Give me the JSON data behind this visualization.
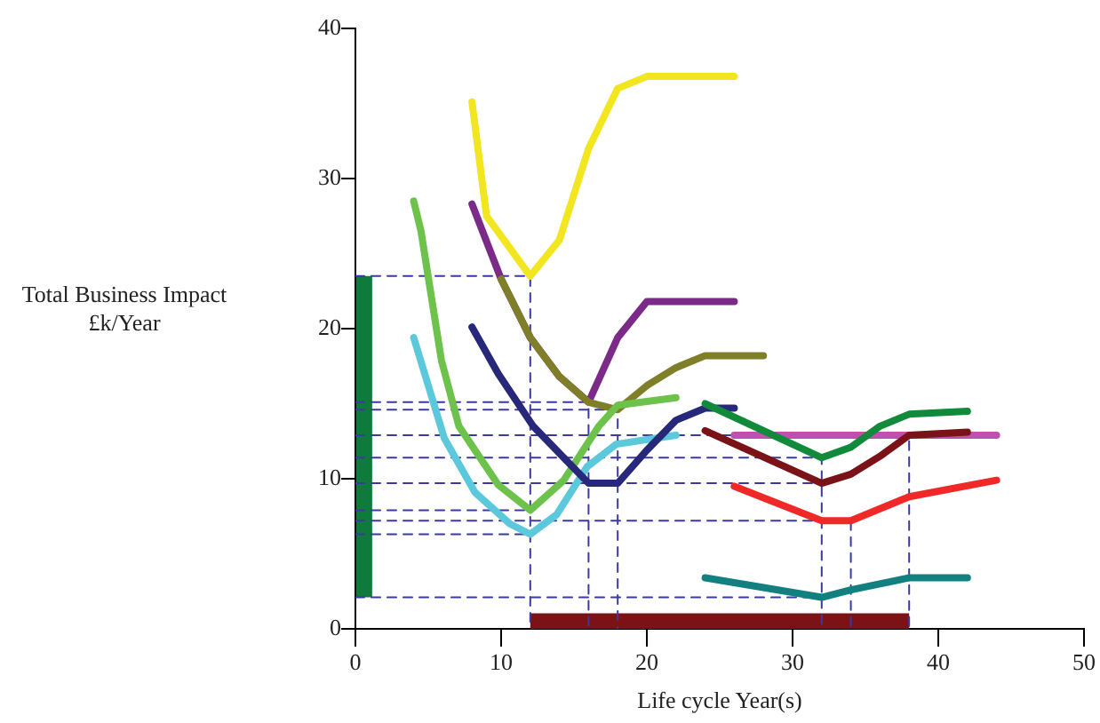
{
  "chart_data": {
    "type": "line",
    "xlabel": "Life cycle Year(s)",
    "ylabel": "Total Business Impact £k/Year",
    "xlim": [
      0,
      50
    ],
    "xticks": [
      0,
      10,
      20,
      30,
      40,
      50
    ],
    "ylim": [
      0,
      40
    ],
    "yticks": [
      0,
      10,
      20,
      30,
      40
    ],
    "grid": false,
    "legend": false,
    "marker": "none",
    "line_style": "solid",
    "series": [
      {
        "color": "#0e7a3c",
        "x": [
          0.6,
          0.6
        ],
        "values": [
          2.1,
          23.5
        ]
      },
      {
        "color": "#7a1216",
        "x": [
          12,
          38
        ],
        "values": [
          0.5,
          0.5
        ]
      },
      {
        "color": "#3a3aa0",
        "line_style": "dashed",
        "x": [
          0,
          12,
          12
        ],
        "values": [
          23.5,
          23.5,
          0
        ]
      },
      {
        "color": "#3a3aa0",
        "line_style": "dashed",
        "x": [
          0,
          16,
          16
        ],
        "values": [
          15.1,
          15.1,
          0
        ]
      },
      {
        "color": "#3a3aa0",
        "line_style": "dashed",
        "x": [
          0,
          18,
          18
        ],
        "values": [
          14.6,
          14.6,
          0
        ]
      },
      {
        "color": "#3a3aa0",
        "line_style": "dashed",
        "x": [
          0,
          38,
          38
        ],
        "values": [
          12.9,
          12.9,
          0
        ]
      },
      {
        "color": "#3a3aa0",
        "line_style": "dashed",
        "x": [
          0,
          32,
          32
        ],
        "values": [
          11.4,
          11.4,
          0
        ]
      },
      {
        "color": "#3a3aa0",
        "line_style": "dashed",
        "x": [
          0,
          32
        ],
        "values": [
          9.7,
          9.7
        ]
      },
      {
        "color": "#3a3aa0",
        "line_style": "dashed",
        "x": [
          0,
          12
        ],
        "values": [
          7.9,
          7.9
        ]
      },
      {
        "color": "#3a3aa0",
        "line_style": "dashed",
        "x": [
          0,
          34,
          34
        ],
        "values": [
          7.2,
          7.2,
          0
        ]
      },
      {
        "color": "#3a3aa0",
        "line_style": "dashed",
        "x": [
          0,
          12
        ],
        "values": [
          6.3,
          6.3
        ]
      },
      {
        "color": "#3a3aa0",
        "line_style": "dashed",
        "x": [
          0,
          32
        ],
        "values": [
          2.1,
          2.1
        ]
      },
      {
        "color": "#f2e620",
        "x": [
          8,
          9,
          12,
          14,
          16,
          18,
          20,
          26
        ],
        "values": [
          35.1,
          27.5,
          23.5,
          25.9,
          32,
          36,
          36.8,
          36.8
        ]
      },
      {
        "color": "#7b2a88",
        "x": [
          8,
          10,
          12,
          14,
          16,
          18,
          20,
          26
        ],
        "values": [
          28.3,
          23.3,
          19.4,
          16.8,
          15.1,
          19.4,
          21.8,
          21.8
        ]
      },
      {
        "color": "#7f7f2a",
        "x": [
          10,
          12,
          14,
          16,
          18,
          20,
          22,
          24,
          28
        ],
        "values": [
          23.3,
          19.4,
          16.8,
          15.1,
          14.6,
          16.2,
          17.4,
          18.2,
          18.2
        ]
      },
      {
        "color": "#6cc24a",
        "x": [
          4,
          4.5,
          5.9,
          7.1,
          9.8,
          12,
          14.3,
          16.7,
          18,
          22
        ],
        "values": [
          28.5,
          26.5,
          17.9,
          13.5,
          9.6,
          7.9,
          9.9,
          13.5,
          14.9,
          15.4
        ]
      },
      {
        "color": "#5cc8dc",
        "x": [
          4,
          6.1,
          8.2,
          10.6,
          12,
          13.8,
          15.9,
          17.9,
          22
        ],
        "values": [
          19.4,
          12.7,
          9.1,
          7,
          6.3,
          7.6,
          10.8,
          12.3,
          12.9
        ]
      },
      {
        "color": "#27287a",
        "x": [
          8,
          9.8,
          12.2,
          14.3,
          16,
          18,
          20,
          22,
          24,
          26
        ],
        "values": [
          20.1,
          17,
          13.5,
          11.4,
          9.7,
          9.7,
          11.9,
          13.9,
          14.7,
          14.7
        ]
      },
      {
        "color": "#c04fb0",
        "x": [
          26,
          44
        ],
        "values": [
          12.9,
          12.9
        ]
      },
      {
        "color": "#128a3c",
        "x": [
          24,
          32,
          34,
          36,
          38,
          42
        ],
        "values": [
          15,
          11.4,
          12.1,
          13.5,
          14.3,
          14.5
        ]
      },
      {
        "color": "#7a1218",
        "x": [
          24,
          32,
          34,
          36,
          38,
          42
        ],
        "values": [
          13.2,
          9.7,
          10.3,
          11.5,
          12.9,
          13.1
        ]
      },
      {
        "color": "#f02828",
        "x": [
          26,
          32,
          34,
          38,
          44
        ],
        "values": [
          9.5,
          7.2,
          7.2,
          8.8,
          9.9
        ]
      },
      {
        "color": "#138080",
        "x": [
          24,
          32,
          34,
          38,
          42
        ],
        "values": [
          3.4,
          2.1,
          2.6,
          3.4,
          3.4
        ]
      }
    ]
  }
}
